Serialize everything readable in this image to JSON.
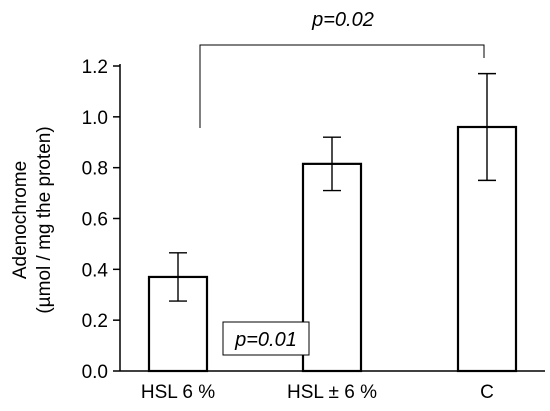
{
  "chart_data": {
    "type": "bar",
    "categories": [
      "HSL 6 %",
      "HSL ± 6 %",
      "C"
    ],
    "values": [
      0.37,
      0.815,
      0.96
    ],
    "errors": [
      0.095,
      0.105,
      0.21
    ],
    "title": "",
    "xlabel": "",
    "ylabel_line1": "Adenochrome",
    "ylabel_line2": "(µmol / mg the proten)",
    "ylim": [
      0,
      1.2
    ],
    "yticks": [
      "0.0",
      "0.2",
      "0.4",
      "0.6",
      "0.8",
      "1.0",
      "1.2"
    ],
    "annotations": [
      {
        "text": "p=0.02",
        "between": [
          "HSL 6 %",
          "C"
        ],
        "style": "bracket"
      },
      {
        "text": "p=0.01",
        "near": "HSL 6 %",
        "style": "boxed"
      }
    ],
    "bar_fill": "#ffffff",
    "bar_stroke": "#000000"
  }
}
